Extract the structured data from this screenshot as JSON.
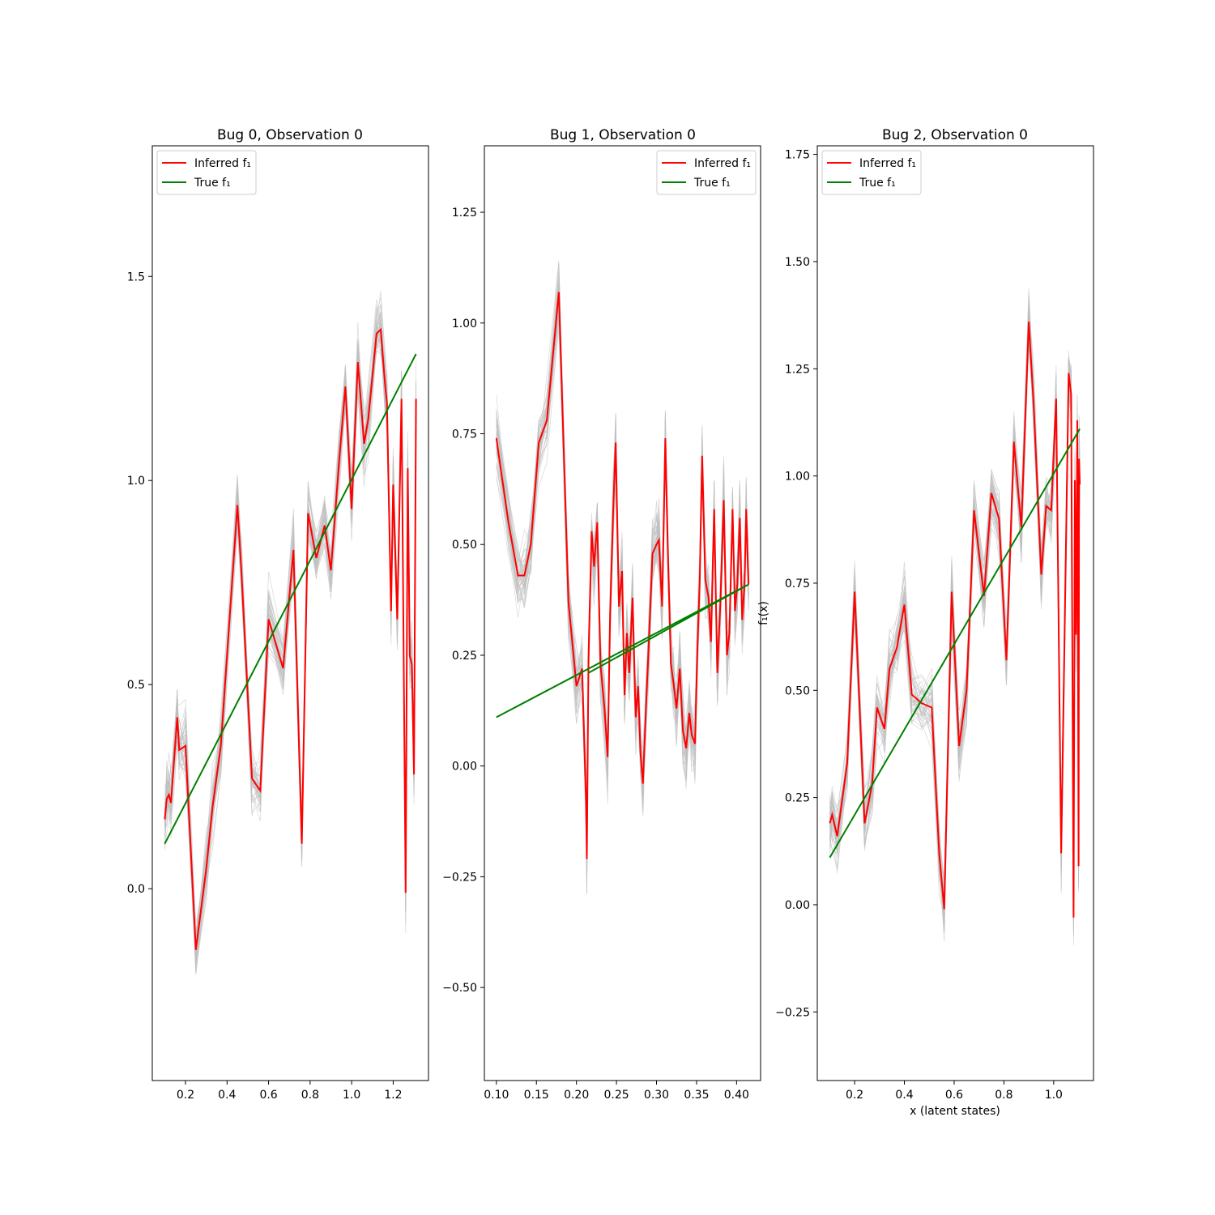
{
  "figure": {
    "xlabel_shared": "x (latent states)",
    "ylabel_shared": "f₁(x)"
  },
  "colors": {
    "inferred": "#ff0000",
    "true": "#008000",
    "samples": "#bfbfbf",
    "axes": "#000000"
  },
  "chart_data": [
    {
      "type": "line",
      "title": "Bug 0, Observation 0",
      "xlabel": "",
      "ylabel": "",
      "xlim": [
        0.04,
        1.37
      ],
      "ylim": [
        -0.47,
        1.82
      ],
      "xticks": [
        0.2,
        0.4,
        0.6,
        0.8,
        1.0,
        1.2
      ],
      "xtick_labels": [
        "0.2",
        "0.4",
        "0.6",
        "0.8",
        "1.0",
        "1.2"
      ],
      "yticks": [
        0.0,
        0.5,
        1.0,
        1.5
      ],
      "ytick_labels": [
        "0.0",
        "0.5",
        "1.0",
        "1.5"
      ],
      "legend": {
        "position": "top-left",
        "entries": [
          "Inferred f₁",
          "True f₁"
        ]
      },
      "series": [
        {
          "name": "Inferred f₁",
          "x": [
            0.1,
            0.11,
            0.12,
            0.13,
            0.14,
            0.16,
            0.17,
            0.2,
            0.25,
            0.3,
            0.33,
            0.37,
            0.45,
            0.47,
            0.52,
            0.56,
            0.6,
            0.67,
            0.72,
            0.76,
            0.79,
            0.83,
            0.87,
            0.9,
            0.94,
            0.97,
            1.0,
            1.03,
            1.06,
            1.08,
            1.12,
            1.14,
            1.16,
            1.17,
            1.19,
            1.2,
            1.22,
            1.24,
            1.26,
            1.27,
            1.28,
            1.29,
            1.3,
            1.31
          ],
          "y": [
            0.17,
            0.22,
            0.23,
            0.21,
            0.28,
            0.42,
            0.34,
            0.35,
            -0.15,
            0.05,
            0.2,
            0.35,
            0.94,
            0.77,
            0.27,
            0.24,
            0.66,
            0.54,
            0.83,
            0.11,
            0.92,
            0.81,
            0.89,
            0.78,
            1.05,
            1.23,
            0.93,
            1.29,
            1.09,
            1.15,
            1.36,
            1.37,
            1.24,
            1.19,
            0.68,
            0.99,
            0.66,
            1.2,
            -0.01,
            1.03,
            0.57,
            0.55,
            0.28,
            1.2
          ]
        },
        {
          "name": "True f₁",
          "x": [
            0.1,
            1.31
          ],
          "y": [
            0.11,
            1.31
          ]
        }
      ]
    },
    {
      "type": "line",
      "title": "Bug 1, Observation 0",
      "xlabel": "",
      "ylabel": "",
      "xlim": [
        0.085,
        0.43
      ],
      "ylim": [
        -0.71,
        1.4
      ],
      "xticks": [
        0.1,
        0.15,
        0.2,
        0.25,
        0.3,
        0.35,
        0.4
      ],
      "xtick_labels": [
        "0.10",
        "0.15",
        "0.20",
        "0.25",
        "0.30",
        "0.35",
        "0.40"
      ],
      "yticks": [
        -0.5,
        -0.25,
        0.0,
        0.25,
        0.5,
        0.75,
        1.0,
        1.25
      ],
      "ytick_labels": [
        "−0.50",
        "−0.25",
        "0.00",
        "0.25",
        "0.50",
        "0.75",
        "1.00",
        "1.25"
      ],
      "legend": {
        "position": "top-right",
        "entries": [
          "Inferred f₁",
          "True f₁"
        ]
      },
      "series": [
        {
          "name": "Inferred f₁",
          "x": [
            0.1,
            0.115,
            0.127,
            0.135,
            0.143,
            0.153,
            0.163,
            0.178,
            0.19,
            0.2,
            0.207,
            0.212,
            0.213,
            0.215,
            0.219,
            0.222,
            0.226,
            0.23,
            0.235,
            0.239,
            0.242,
            0.246,
            0.249,
            0.253,
            0.257,
            0.26,
            0.263,
            0.266,
            0.27,
            0.274,
            0.277,
            0.28,
            0.283,
            0.287,
            0.29,
            0.295,
            0.3,
            0.303,
            0.307,
            0.311,
            0.314,
            0.318,
            0.321,
            0.325,
            0.329,
            0.333,
            0.337,
            0.341,
            0.344,
            0.348,
            0.351,
            0.354,
            0.357,
            0.361,
            0.365,
            0.368,
            0.372,
            0.376,
            0.38,
            0.384,
            0.388,
            0.391,
            0.395,
            0.398,
            0.401,
            0.404,
            0.407,
            0.41,
            0.412,
            0.414,
            0.415
          ],
          "y": [
            0.74,
            0.55,
            0.43,
            0.43,
            0.5,
            0.73,
            0.78,
            1.07,
            0.37,
            0.18,
            0.22,
            -0.08,
            -0.21,
            0.24,
            0.53,
            0.45,
            0.55,
            0.23,
            0.13,
            0.02,
            0.34,
            0.58,
            0.73,
            0.36,
            0.44,
            0.16,
            0.3,
            0.21,
            0.38,
            0.11,
            0.18,
            0.03,
            -0.04,
            0.14,
            0.26,
            0.48,
            0.5,
            0.51,
            0.36,
            0.74,
            0.5,
            0.23,
            0.19,
            0.13,
            0.22,
            0.08,
            0.04,
            0.12,
            0.07,
            0.05,
            0.26,
            0.42,
            0.7,
            0.42,
            0.38,
            0.28,
            0.58,
            0.21,
            0.38,
            0.6,
            0.25,
            0.3,
            0.58,
            0.35,
            0.41,
            0.56,
            0.33,
            0.41,
            0.58,
            0.46,
            0.41
          ]
        },
        {
          "name": "True f₁",
          "x": [
            0.1,
            0.415,
            0.215,
            0.415
          ],
          "y": [
            0.11,
            0.41,
            0.21,
            0.41
          ]
        }
      ]
    },
    {
      "type": "line",
      "title": "Bug 2, Observation 0",
      "xlabel": "x (latent states)",
      "ylabel": "",
      "xlim": [
        0.05,
        1.16
      ],
      "ylim": [
        -0.41,
        1.77
      ],
      "xticks": [
        0.2,
        0.4,
        0.6,
        0.8,
        1.0
      ],
      "xtick_labels": [
        "0.2",
        "0.4",
        "0.6",
        "0.8",
        "1.0"
      ],
      "yticks": [
        -0.25,
        0.0,
        0.25,
        0.5,
        0.75,
        1.0,
        1.25,
        1.5,
        1.75
      ],
      "ytick_labels": [
        "−0.25",
        "0.00",
        "0.25",
        "0.50",
        "0.75",
        "1.00",
        "1.25",
        "1.50",
        "1.75"
      ],
      "legend": {
        "position": "top-left",
        "entries": [
          "Inferred f₁",
          "True f₁"
        ]
      },
      "series": [
        {
          "name": "Inferred f₁",
          "x": [
            0.1,
            0.11,
            0.13,
            0.17,
            0.2,
            0.24,
            0.27,
            0.29,
            0.32,
            0.34,
            0.37,
            0.4,
            0.43,
            0.47,
            0.51,
            0.54,
            0.56,
            0.59,
            0.62,
            0.65,
            0.68,
            0.72,
            0.75,
            0.78,
            0.81,
            0.84,
            0.87,
            0.9,
            0.92,
            0.95,
            0.97,
            0.99,
            1.01,
            1.03,
            1.06,
            1.07,
            1.08,
            1.085,
            1.09,
            1.095,
            1.1,
            1.102,
            1.105
          ],
          "y": [
            0.19,
            0.21,
            0.16,
            0.33,
            0.73,
            0.19,
            0.28,
            0.46,
            0.41,
            0.55,
            0.6,
            0.7,
            0.49,
            0.47,
            0.46,
            0.12,
            -0.01,
            0.73,
            0.37,
            0.5,
            0.92,
            0.72,
            0.96,
            0.9,
            0.57,
            1.08,
            0.88,
            1.36,
            1.16,
            0.77,
            0.93,
            0.92,
            1.18,
            0.12,
            1.24,
            1.19,
            -0.03,
            0.99,
            0.63,
            1.13,
            0.09,
            1.04,
            0.98
          ]
        },
        {
          "name": "True f₁",
          "x": [
            0.1,
            1.105
          ],
          "y": [
            0.11,
            1.11
          ]
        }
      ]
    }
  ]
}
